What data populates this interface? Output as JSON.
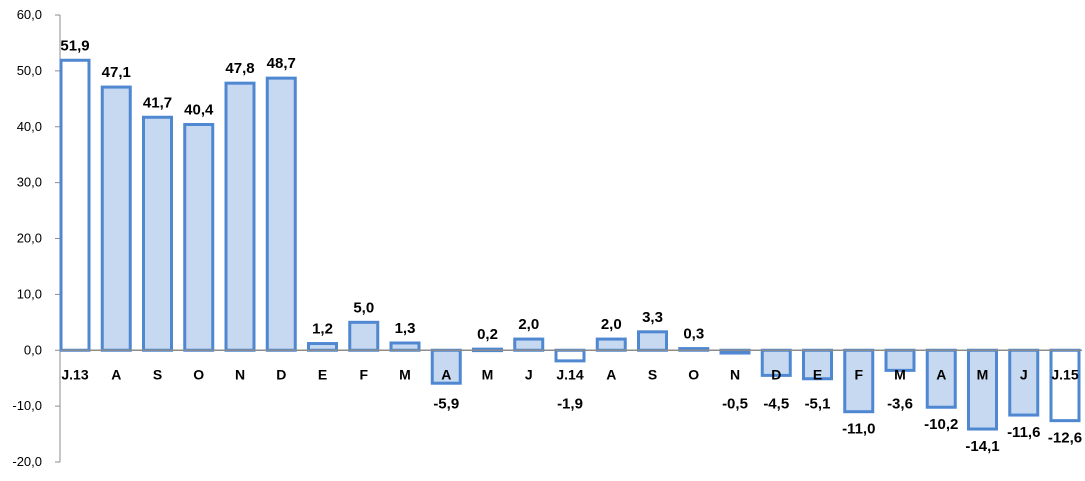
{
  "chart_data": {
    "type": "bar",
    "title": "",
    "xlabel": "",
    "ylabel": "",
    "ylim": [
      -20,
      60
    ],
    "yticks": [
      "60,0",
      "50,0",
      "40,0",
      "30,0",
      "20,0",
      "10,0",
      "0,0",
      "-10,0",
      "-20,0"
    ],
    "ytick_values": [
      60,
      50,
      40,
      30,
      20,
      10,
      0,
      -10,
      -20
    ],
    "grid": false,
    "legend": "none",
    "categories": [
      "J.13",
      "A",
      "S",
      "O",
      "N",
      "D",
      "E",
      "F",
      "M",
      "A",
      "M",
      "J",
      "J.14",
      "A",
      "S",
      "O",
      "N",
      "D",
      "E",
      "F",
      "M",
      "A",
      "M",
      "J",
      "J.15"
    ],
    "values": [
      51.9,
      47.1,
      41.7,
      40.4,
      47.8,
      48.7,
      1.2,
      5.0,
      1.3,
      -5.9,
      0.2,
      2.0,
      -1.9,
      2.0,
      3.3,
      0.3,
      -0.5,
      -4.5,
      -5.1,
      -11.0,
      -3.6,
      -10.2,
      -14.1,
      -11.6,
      -12.6
    ],
    "value_labels": [
      "51,9",
      "47,1",
      "41,7",
      "40,4",
      "47,8",
      "48,7",
      "1,2",
      "5,0",
      "1,3",
      "-5,9",
      "0,2",
      "2,0",
      "-1,9",
      "2,0",
      "3,3",
      "0,3",
      "-0,5",
      "-4,5",
      "-5,1",
      "-11,0",
      "-3,6",
      "-10,2",
      "-14,1",
      "-11,6",
      "-12,6"
    ],
    "highlighted_indices": [
      0,
      12,
      24
    ],
    "colors": {
      "bar_fill": "#c6d9f1",
      "bar_fill_highlight": "#ffffff",
      "bar_stroke": "#4f87d1",
      "axis": "#8c8c8c",
      "text": "#000000"
    }
  }
}
